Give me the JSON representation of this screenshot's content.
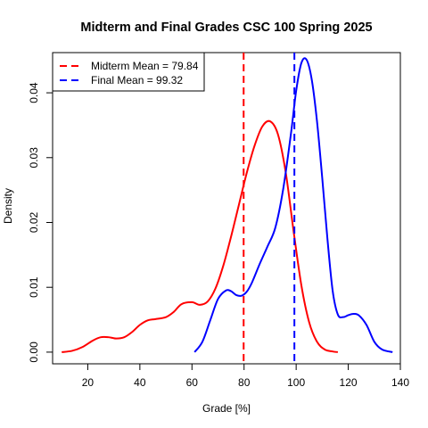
{
  "chart_data": {
    "type": "line",
    "title": "Midterm and Final Grades CSC 100 Spring 2025",
    "xlabel": "Grade [%]",
    "ylabel": "Density",
    "xlim": [
      6.5,
      140
    ],
    "ylim": [
      -0.0018,
      0.0462
    ],
    "xticks": [
      "20",
      "40",
      "60",
      "80",
      "100",
      "120",
      "140"
    ],
    "yticks": [
      "0.00",
      "0.01",
      "0.02",
      "0.03",
      "0.04"
    ],
    "grid": false,
    "legend_position": "top-left",
    "series": [
      {
        "name": "Midterm",
        "color": "#ff0000",
        "x": [
          10,
          14,
          18,
          22,
          25,
          28,
          31,
          34,
          37,
          40,
          43,
          46,
          50,
          53,
          56,
          60,
          63,
          66,
          69,
          72,
          75,
          78,
          81,
          84,
          87,
          90,
          93,
          96,
          99,
          102,
          105,
          108,
          111,
          114,
          116
        ],
        "y": [
          0.0,
          0.0002,
          0.0008,
          0.0018,
          0.0023,
          0.0023,
          0.0021,
          0.0023,
          0.0031,
          0.0042,
          0.0049,
          0.0051,
          0.0054,
          0.0062,
          0.0074,
          0.0077,
          0.0073,
          0.0078,
          0.0098,
          0.0133,
          0.0178,
          0.0227,
          0.0276,
          0.0318,
          0.0348,
          0.0356,
          0.0336,
          0.0277,
          0.0187,
          0.0103,
          0.0046,
          0.0016,
          0.0004,
          0.0001,
          0.0
        ]
      },
      {
        "name": "Final",
        "color": "#0000ff",
        "x": [
          61,
          64,
          67,
          70,
          73,
          75,
          77,
          79,
          81,
          83,
          86,
          89,
          92,
          95,
          98,
          100,
          102,
          104,
          106,
          108,
          110,
          112,
          114,
          116,
          118,
          120,
          122,
          124,
          127,
          130,
          133,
          137
        ],
        "y": [
          0.0,
          0.0016,
          0.0049,
          0.0082,
          0.0095,
          0.0094,
          0.0088,
          0.0087,
          0.0093,
          0.0107,
          0.0136,
          0.0163,
          0.0192,
          0.0251,
          0.0337,
          0.0403,
          0.0446,
          0.0451,
          0.042,
          0.0356,
          0.0269,
          0.0175,
          0.0095,
          0.0058,
          0.0054,
          0.0057,
          0.0059,
          0.0057,
          0.0042,
          0.0016,
          0.0004,
          0.0
        ]
      }
    ],
    "vlines": [
      {
        "name": "Midterm Mean",
        "x": 79.84,
        "color": "#ff0000",
        "style": "dashed"
      },
      {
        "name": "Final Mean",
        "x": 99.32,
        "color": "#0000ff",
        "style": "dashed"
      }
    ],
    "legend": [
      {
        "label": "Midterm Mean = 79.84",
        "color": "#ff0000",
        "style": "dashed"
      },
      {
        "label": "Final Mean = 99.32",
        "color": "#0000ff",
        "style": "dashed"
      }
    ]
  }
}
